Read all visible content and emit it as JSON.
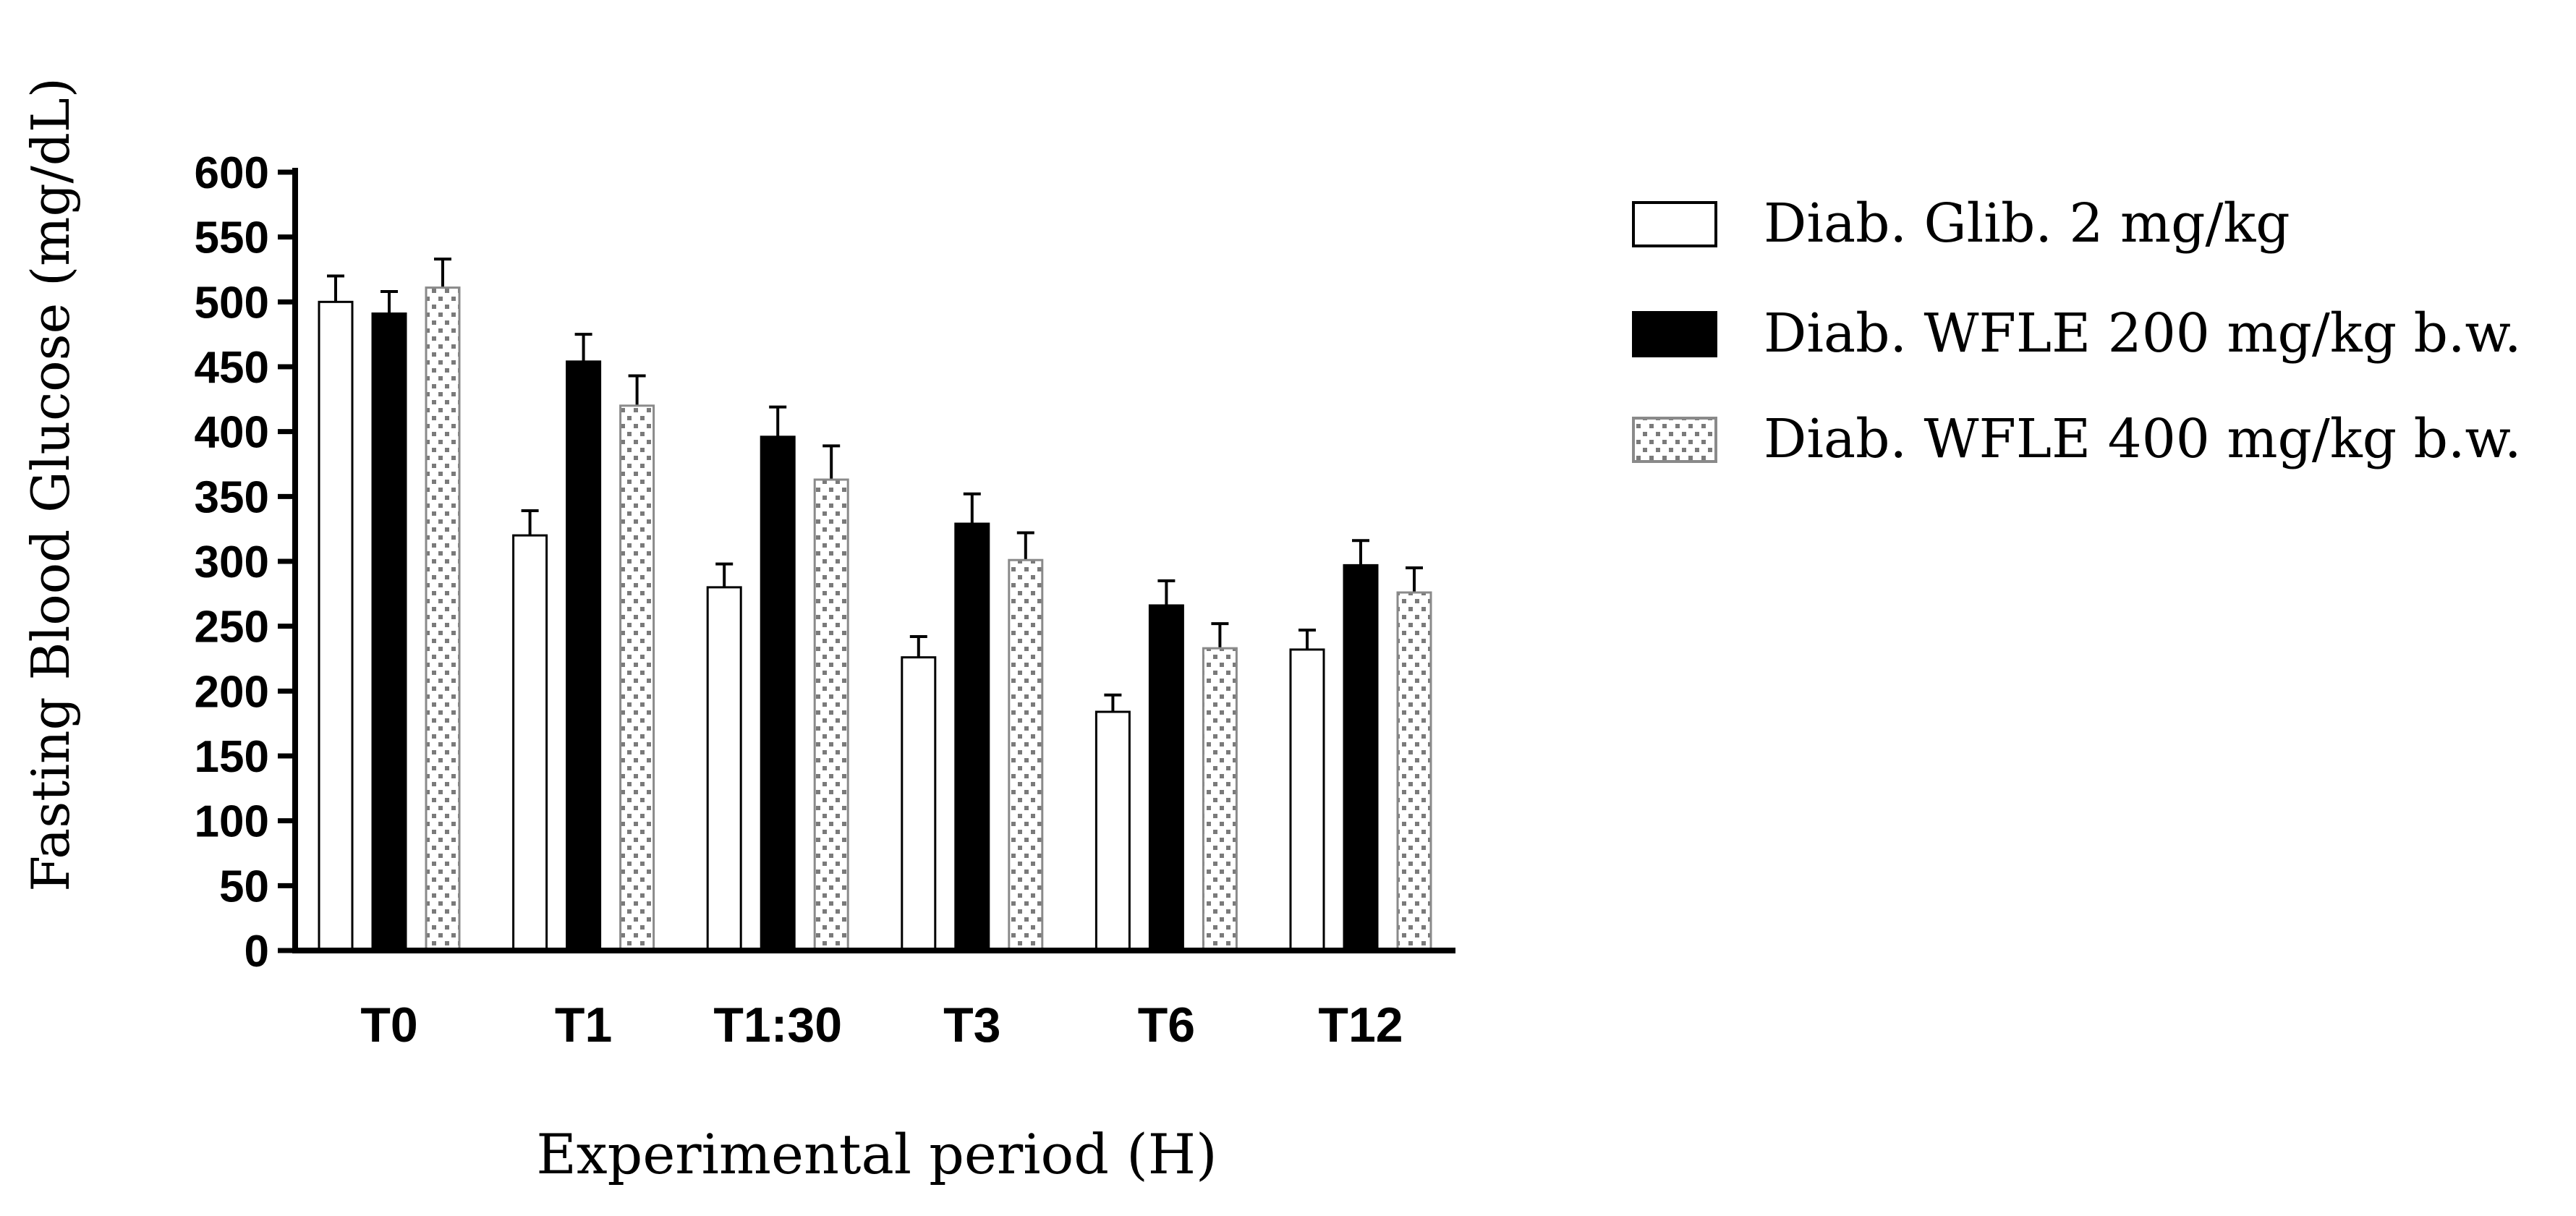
{
  "chart_data": {
    "type": "bar",
    "title": "",
    "xlabel": "Experimental period (H)",
    "ylabel": "Fasting Blood Glucose (mg/dL)",
    "ylim": [
      0,
      600
    ],
    "yticks": [
      0,
      50,
      100,
      150,
      200,
      250,
      300,
      350,
      400,
      450,
      500,
      550,
      600
    ],
    "categories": [
      "T0",
      "T1",
      "T1:30",
      "T3",
      "T6",
      "T12"
    ],
    "error_bars": "upper",
    "legend_position": "right",
    "series": [
      {
        "name": "Diab. Glib. 2 mg/kg",
        "fill": "white",
        "color": "#ffffff",
        "values": [
          500,
          320,
          280,
          226,
          184,
          232
        ],
        "errors": [
          20,
          19,
          18,
          16,
          13,
          15
        ]
      },
      {
        "name": "Diab. WFLE 200 mg/kg b.w.",
        "fill": "solid",
        "color": "#000000",
        "values": [
          491,
          454,
          396,
          329,
          266,
          297
        ],
        "errors": [
          17,
          21,
          23,
          23,
          19,
          19
        ]
      },
      {
        "name": "Diab. WFLE 400 mg/kg b.w.",
        "fill": "dotted",
        "color": "#7a7a7a",
        "values": [
          511,
          420,
          363,
          301,
          233,
          276
        ],
        "errors": [
          22,
          23,
          26,
          21,
          19,
          19
        ]
      }
    ]
  }
}
